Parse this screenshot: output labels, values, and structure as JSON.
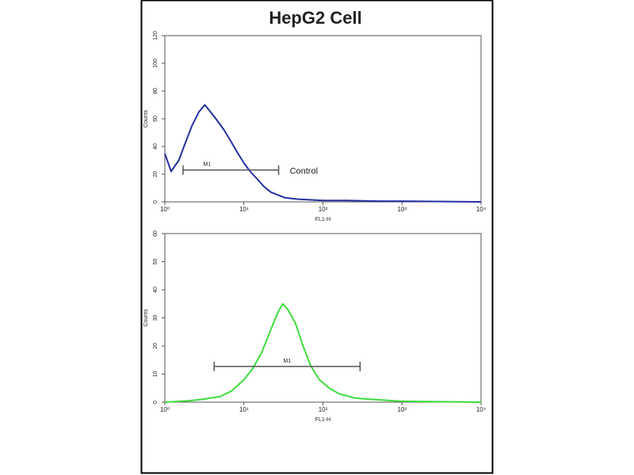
{
  "title": "HepG2 Cell",
  "chart_data": [
    {
      "type": "line",
      "x_label": "FL1-H",
      "y_label": "Counts",
      "log_x": true,
      "color": "#24309f",
      "xlim": [
        1,
        10000
      ],
      "xticks": [
        {
          "value": 1,
          "label": "10⁰"
        },
        {
          "value": 10,
          "label": "10¹"
        },
        {
          "value": 100,
          "label": "10²"
        },
        {
          "value": 1000,
          "label": "10³"
        },
        {
          "value": 10000,
          "label": "10⁴"
        }
      ],
      "ylim": [
        0,
        120
      ],
      "yticks": [
        0,
        20,
        40,
        60,
        80,
        100,
        120
      ],
      "x": [
        1,
        1.2,
        1.5,
        1.8,
        2.2,
        2.7,
        3.2,
        3.9,
        4.7,
        5.6,
        6.8,
        8.2,
        10,
        12,
        15,
        18,
        22,
        27,
        33,
        47,
        68,
        100,
        200,
        500,
        1000,
        10000
      ],
      "values": [
        35,
        22,
        30,
        42,
        55,
        65,
        70,
        64,
        58,
        52,
        44,
        36,
        28,
        22,
        16,
        11,
        7,
        5,
        3,
        2,
        1.5,
        1,
        1,
        0.5,
        0.5,
        0
      ],
      "gate": {
        "label": "M1",
        "x": [
          1.7,
          27.5
        ],
        "y": 23
      },
      "annotation": "Control"
    },
    {
      "type": "line",
      "x_label": "FL1-H",
      "y_label": "Counts",
      "log_x": true,
      "color": "#3ddc3d",
      "xlim": [
        1,
        10000
      ],
      "xticks": [
        {
          "value": 1,
          "label": "10⁰"
        },
        {
          "value": 10,
          "label": "10¹"
        },
        {
          "value": 100,
          "label": "10²"
        },
        {
          "value": 1000,
          "label": "10³"
        },
        {
          "value": 10000,
          "label": "10⁴"
        }
      ],
      "ylim": [
        0,
        60
      ],
      "yticks": [
        0,
        10,
        20,
        30,
        40,
        50,
        60
      ],
      "x": [
        1,
        2,
        3,
        5,
        7,
        10,
        13,
        17,
        22,
        27,
        31,
        36,
        45,
        56,
        70,
        90,
        120,
        160,
        250,
        400,
        1000,
        10000
      ],
      "values": [
        0,
        0.5,
        1,
        2,
        4,
        8,
        12,
        18,
        26,
        32,
        35,
        33,
        28,
        20,
        13,
        8,
        5,
        3,
        1.5,
        1,
        0.3,
        0
      ],
      "gate": {
        "label": "M1",
        "x": [
          4.2,
          295
        ],
        "y": 12.7
      }
    }
  ]
}
